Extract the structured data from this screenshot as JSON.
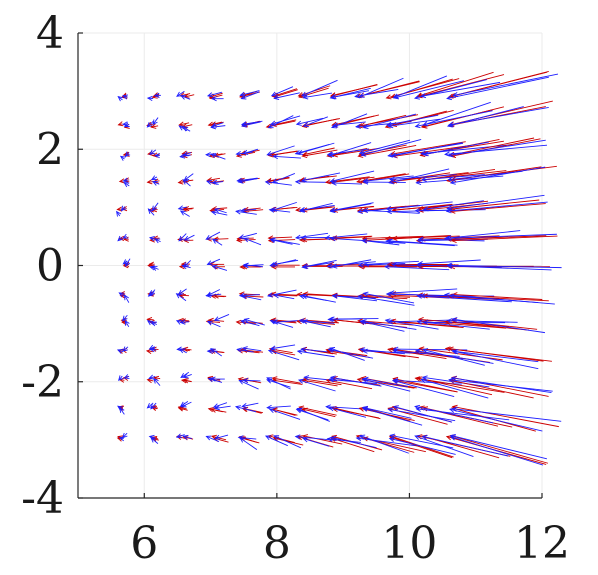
{
  "chart_data": {
    "type": "quiver",
    "title": "",
    "xlabel": "",
    "ylabel": "",
    "xlim": [
      5,
      12
    ],
    "ylim": [
      -4,
      4
    ],
    "xticks": [
      6,
      8,
      10,
      12
    ],
    "yticks": [
      4,
      2,
      0,
      -2,
      -4
    ],
    "xtick_labels": [
      "6",
      "8",
      "10",
      "12"
    ],
    "ytick_labels": [
      "4",
      "2",
      "0",
      "-2",
      "-4"
    ],
    "grid": true,
    "legend": "none",
    "grid_rows_y": [
      2.9,
      2.4,
      1.9,
      1.45,
      0.95,
      0.45,
      0.0,
      -0.5,
      -0.95,
      -1.45,
      -1.95,
      -2.45,
      -2.95
    ],
    "grid_cols_x": [
      5.65,
      6.1,
      6.55,
      7.0,
      7.45,
      7.9,
      8.35,
      8.8,
      9.25,
      9.7,
      10.15,
      10.6
    ],
    "series": [
      {
        "color": "#cc0000",
        "arrow_scale_x": 0.4,
        "arrow_scale_y": 0.03,
        "note_field": "horizontal-dominant radial field, arrows lengthen with x"
      },
      {
        "color": "#1f1fff",
        "arrow_scale_x": 0.4,
        "arrow_scale_y": 0.03,
        "noise": 0.18
      }
    ]
  }
}
